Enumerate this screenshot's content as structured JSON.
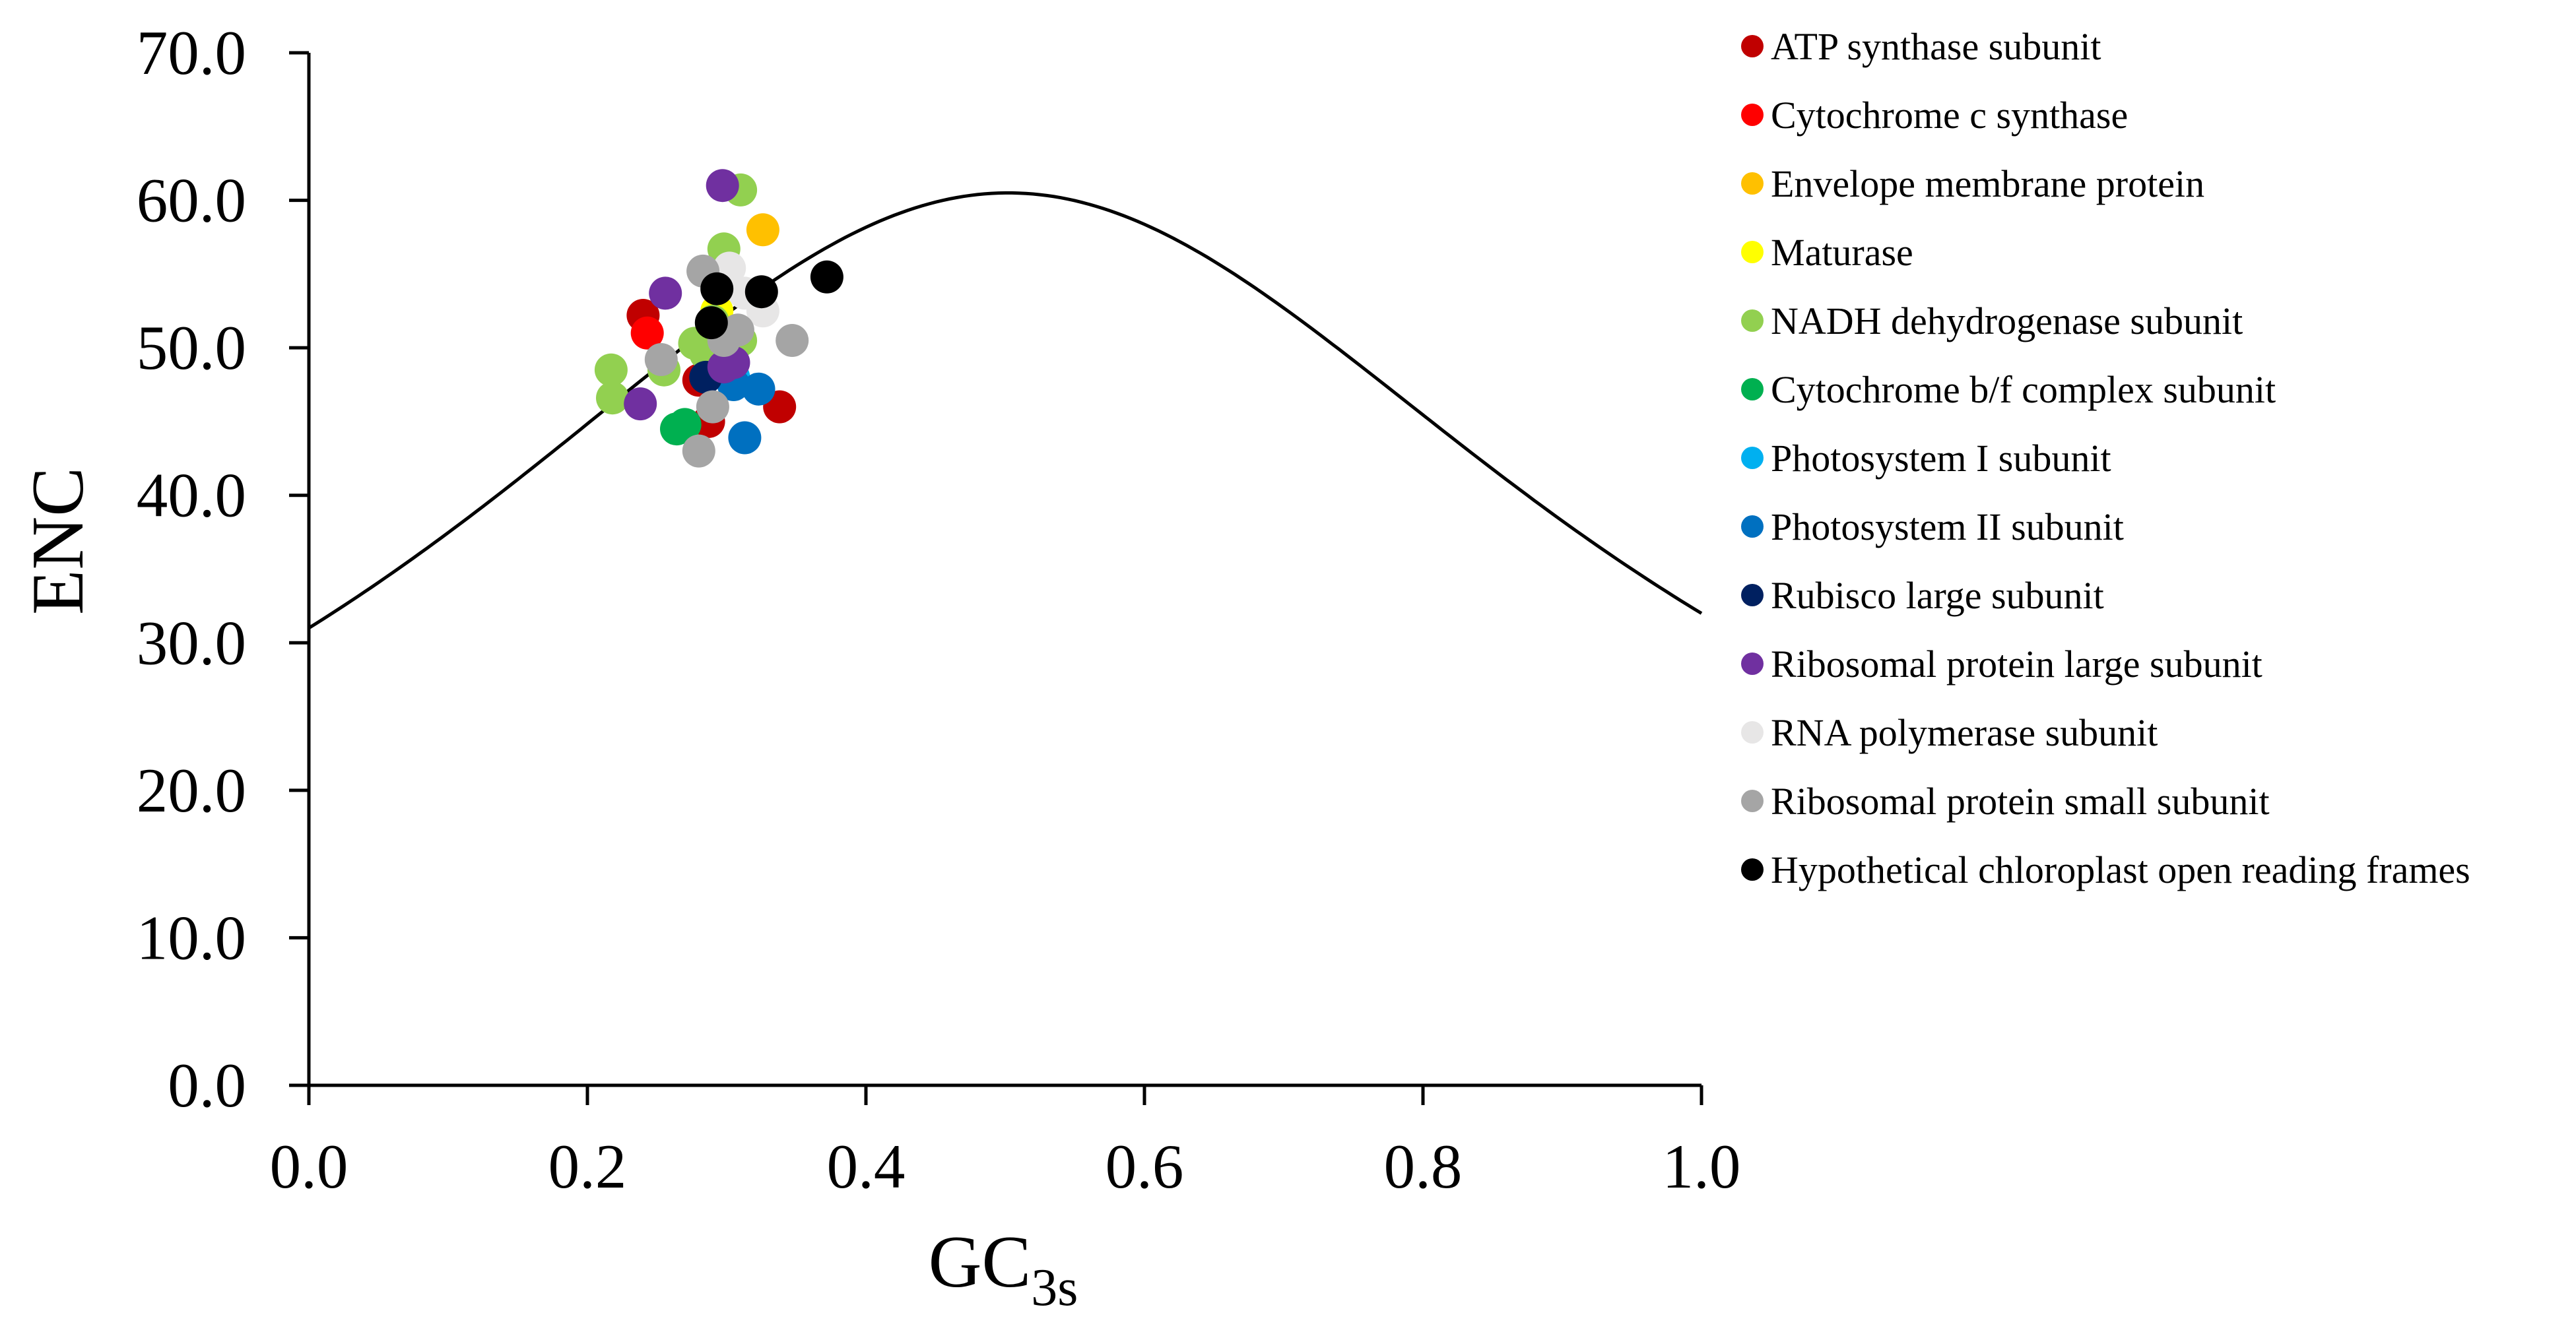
{
  "chart_data": {
    "type": "scatter",
    "xlabel": "GC",
    "xlabel_sub": "3s",
    "ylabel": "ENC",
    "xlim": [
      0,
      1.0
    ],
    "ylim": [
      0,
      70
    ],
    "xticks": [
      0.0,
      0.2,
      0.4,
      0.6,
      0.8,
      1.0
    ],
    "yticks": [
      0,
      10,
      20,
      30,
      40,
      50,
      60,
      70
    ],
    "xtick_labels": [
      "0.0",
      "0.2",
      "0.4",
      "0.6",
      "0.8",
      "1.0"
    ],
    "ytick_labels": [
      "0.0",
      "10.0",
      "20.0",
      "30.0",
      "40.0",
      "50.0",
      "60.0",
      "70.0"
    ],
    "grid": false,
    "legend_position": "right",
    "expected_curve": "ENC = 2 + GC3s + 29 / (GC3s^2 + (1 - GC3s)^2)",
    "series": [
      {
        "name": "ATP synthase subunit",
        "color": "#c00000",
        "points": [
          [
            0.24,
            52.2
          ],
          [
            0.28,
            47.8
          ],
          [
            0.287,
            45.0
          ],
          [
            0.338,
            46.0
          ],
          [
            0.296,
            48.5
          ]
        ]
      },
      {
        "name": "Cytochrome c synthase",
        "color": "#ff0000",
        "points": [
          [
            0.243,
            51.0
          ]
        ]
      },
      {
        "name": "Envelope membrane protein",
        "color": "#ffc000",
        "points": [
          [
            0.326,
            58.0
          ]
        ]
      },
      {
        "name": "Maturase",
        "color": "#ffff00",
        "points": [
          [
            0.293,
            52.5
          ]
        ]
      },
      {
        "name": "NADH dehydrogenase subunit",
        "color": "#92d050",
        "points": [
          [
            0.217,
            48.5
          ],
          [
            0.218,
            46.6
          ],
          [
            0.255,
            48.5
          ],
          [
            0.277,
            50.3
          ],
          [
            0.285,
            49.6
          ],
          [
            0.29,
            51.8
          ],
          [
            0.298,
            56.7
          ],
          [
            0.31,
            60.7
          ],
          [
            0.31,
            50.5
          ],
          [
            0.268,
            44.6
          ]
        ]
      },
      {
        "name": "Cytochrome b/f complex subunit",
        "color": "#00b050",
        "points": [
          [
            0.264,
            44.5
          ],
          [
            0.27,
            44.8
          ]
        ]
      },
      {
        "name": "Photosystem I subunit",
        "color": "#00b0f0",
        "points": [
          [
            0.305,
            48.0
          ]
        ]
      },
      {
        "name": "Photosystem II subunit",
        "color": "#0070c0",
        "points": [
          [
            0.313,
            43.9
          ],
          [
            0.323,
            47.2
          ],
          [
            0.305,
            47.5
          ]
        ]
      },
      {
        "name": "Rubisco large subunit",
        "color": "#002060",
        "points": [
          [
            0.285,
            48.0
          ]
        ]
      },
      {
        "name": "Ribosomal protein large subunit",
        "color": "#7030a0",
        "points": [
          [
            0.297,
            61.0
          ],
          [
            0.256,
            53.7
          ],
          [
            0.238,
            46.2
          ],
          [
            0.305,
            49.0
          ],
          [
            0.298,
            48.7
          ]
        ]
      },
      {
        "name": "RNA polymerase subunit",
        "color": "#e7e6e6",
        "points": [
          [
            0.302,
            55.4
          ],
          [
            0.326,
            52.5
          ],
          [
            0.313,
            53.7
          ]
        ]
      },
      {
        "name": "Ribosomal protein small subunit",
        "color": "#a5a5a5",
        "points": [
          [
            0.283,
            55.2
          ],
          [
            0.253,
            49.2
          ],
          [
            0.29,
            46.0
          ],
          [
            0.28,
            43.0
          ],
          [
            0.347,
            50.5
          ],
          [
            0.308,
            51.2
          ],
          [
            0.298,
            50.5
          ]
        ]
      },
      {
        "name": "Hypothetical chloroplast open reading frames",
        "color": "#000000",
        "points": [
          [
            0.293,
            54.0
          ],
          [
            0.325,
            53.8
          ],
          [
            0.372,
            54.8
          ],
          [
            0.289,
            51.7
          ]
        ]
      }
    ]
  }
}
